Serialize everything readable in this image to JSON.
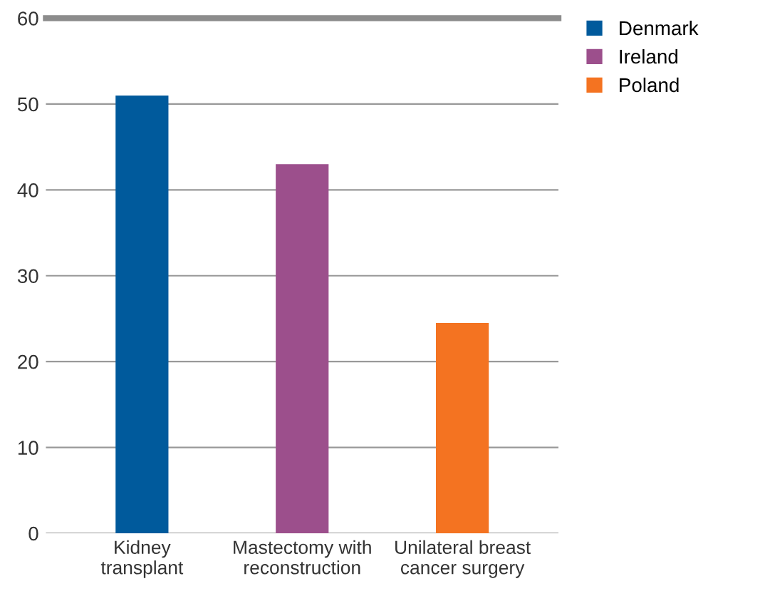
{
  "chart_data": {
    "type": "bar",
    "categories": [
      "Kidney\ntransplant",
      "Mastectomy with\nreconstruction",
      "Unilateral breast\ncancer surgery"
    ],
    "series": [
      {
        "name": "Denmark",
        "color": "#005a9c",
        "values": [
          51,
          null,
          null
        ]
      },
      {
        "name": "Ireland",
        "color": "#9c4f8c",
        "values": [
          null,
          43,
          null
        ]
      },
      {
        "name": "Poland",
        "color": "#f47321",
        "values": [
          null,
          null,
          24.5
        ]
      }
    ],
    "ylim": [
      0,
      60
    ],
    "yticks": [
      0,
      10,
      20,
      30,
      40,
      50,
      60
    ],
    "grid": "y",
    "legend": "top right"
  }
}
